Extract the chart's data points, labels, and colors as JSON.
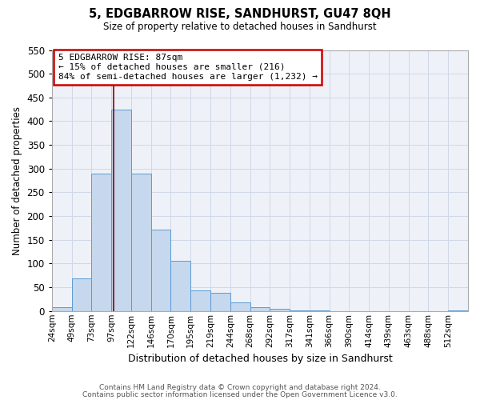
{
  "title": "5, EDGBARROW RISE, SANDHURST, GU47 8QH",
  "subtitle": "Size of property relative to detached houses in Sandhurst",
  "xlabel": "Distribution of detached houses by size in Sandhurst",
  "ylabel": "Number of detached properties",
  "bar_labels": [
    "24sqm",
    "49sqm",
    "73sqm",
    "97sqm",
    "122sqm",
    "146sqm",
    "170sqm",
    "195sqm",
    "219sqm",
    "244sqm",
    "268sqm",
    "292sqm",
    "317sqm",
    "341sqm",
    "366sqm",
    "390sqm",
    "414sqm",
    "439sqm",
    "463sqm",
    "488sqm",
    "512sqm"
  ],
  "bar_values": [
    8,
    68,
    290,
    425,
    290,
    172,
    105,
    43,
    38,
    18,
    8,
    5,
    2,
    1,
    0,
    0,
    0,
    0,
    0,
    0,
    2
  ],
  "bar_color": "#c5d8ed",
  "bar_edge_color": "#5b9bd5",
  "vline_color": "#8b0000",
  "annotation_title": "5 EDGBARROW RISE: 87sqm",
  "annotation_line1": "← 15% of detached houses are smaller (216)",
  "annotation_line2": "84% of semi-detached houses are larger (1,232) →",
  "annotation_box_color": "#ffffff",
  "annotation_box_edge": "#cc0000",
  "ylim": [
    0,
    550
  ],
  "yticks": [
    0,
    50,
    100,
    150,
    200,
    250,
    300,
    350,
    400,
    450,
    500,
    550
  ],
  "grid_color": "#d0d8e8",
  "background_color": "#eef2f8",
  "footer1": "Contains HM Land Registry data © Crown copyright and database right 2024.",
  "footer2": "Contains public sector information licensed under the Open Government Licence v3.0.",
  "bin_width": 24,
  "vline_sqm": 87
}
